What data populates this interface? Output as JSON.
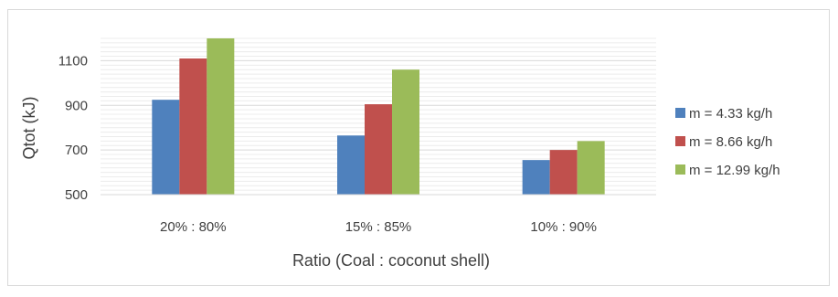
{
  "chart_data": {
    "type": "bar",
    "title": "",
    "xlabel": "Ratio (Coal : coconut shell)",
    "ylabel": "Qtot (kJ)",
    "categories": [
      "20% : 80%",
      "15% : 85%",
      "10% : 90%"
    ],
    "series": [
      {
        "name": "m = 4.33 kg/h",
        "color": "#4f81bd",
        "values": [
          925,
          765,
          655
        ]
      },
      {
        "name": "m = 8.66 kg/h",
        "color": "#c0504d",
        "values": [
          1110,
          905,
          700
        ]
      },
      {
        "name": "m = 12.99 kg/h",
        "color": "#9bbb59",
        "values": [
          1200,
          1060,
          740
        ]
      }
    ],
    "ylim": [
      500,
      1200
    ],
    "yticks": [
      500,
      700,
      900,
      1100
    ],
    "grid": true,
    "legend_position": "right"
  }
}
